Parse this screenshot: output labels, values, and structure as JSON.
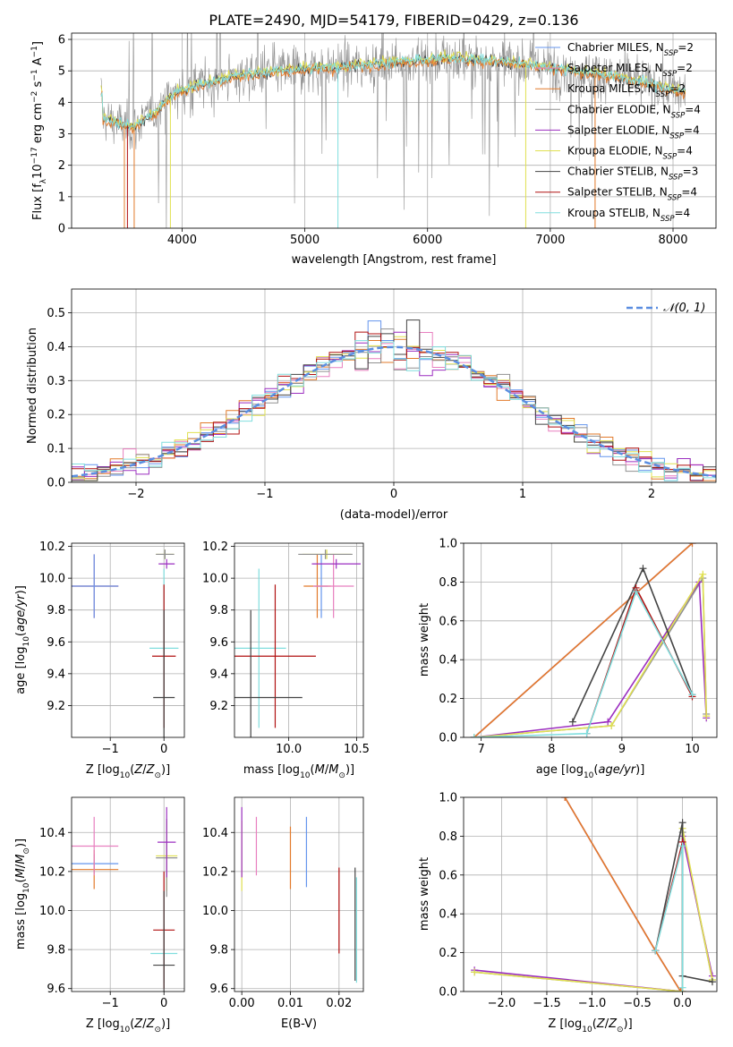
{
  "title": "PLATE=2490, MJD=54179, FIBERID=0429, z=0.136",
  "colors": {
    "Chabrier MILES": "#6495ed",
    "Salpeter MILES": "#e87fbf",
    "Kroupa MILES": "#e27a2a",
    "Chabrier ELODIE": "#909090",
    "Salpeter ELODIE": "#9c2fc0",
    "Kroupa ELODIE": "#e0e050",
    "Chabrier STELIB": "#444444",
    "Salpeter STELIB": "#b01010",
    "Kroupa STELIB": "#80dede",
    "normal": "#5b8ee0",
    "green": "#8fc43a"
  },
  "chart_data": [
    {
      "type": "line",
      "title": "PLATE=2490, MJD=54179, FIBERID=0429, z=0.136",
      "xlabel": "wavelength [Angstrom, rest frame]",
      "ylabel": "Flux [fλ10⁻¹⁷ erg cm⁻² s⁻¹ A⁻¹]",
      "xlim": [
        3100,
        8350
      ],
      "ylim": [
        0,
        6.2
      ],
      "xticks": [
        4000,
        5000,
        6000,
        7000,
        8000
      ],
      "yticks": [
        0,
        1,
        2,
        3,
        4,
        5,
        6
      ],
      "legend_position": "upper-right",
      "legend": [
        {
          "text": "Chabrier MILES, N",
          "sub": "SSP",
          "tail": "=2"
        },
        {
          "text": "Salpeter MILES, N",
          "sub": "SSP",
          "tail": "=2"
        },
        {
          "text": "Kroupa MILES, N",
          "sub": "SSP",
          "tail": "=2"
        },
        {
          "text": "Chabrier ELODIE, N",
          "sub": "SSP",
          "tail": "=4"
        },
        {
          "text": "Salpeter ELODIE, N",
          "sub": "SSP",
          "tail": "=4"
        },
        {
          "text": "Kroupa ELODIE, N",
          "sub": "SSP",
          "tail": "=4"
        },
        {
          "text": "Chabrier STELIB, N",
          "sub": "SSP",
          "tail": "=3"
        },
        {
          "text": "Salpeter STELIB, N",
          "sub": "SSP",
          "tail": "=4"
        },
        {
          "text": "Kroupa STELIB, N",
          "sub": "SSP",
          "tail": "=4"
        }
      ],
      "continuum": [
        [
          3350,
          3.5
        ],
        [
          3600,
          3.2
        ],
        [
          3750,
          3.6
        ],
        [
          3950,
          4.3
        ],
        [
          4100,
          4.5
        ],
        [
          4400,
          4.8
        ],
        [
          4800,
          5.0
        ],
        [
          5200,
          5.1
        ],
        [
          5800,
          5.3
        ],
        [
          6200,
          5.4
        ],
        [
          6600,
          5.3
        ],
        [
          7000,
          5.1
        ],
        [
          7400,
          4.9
        ],
        [
          7800,
          4.6
        ],
        [
          8100,
          4.3
        ]
      ],
      "data_range": [
        3340,
        8100
      ]
    },
    {
      "type": "bar",
      "subtype": "step-histogram",
      "xlabel": "(data-model)/error",
      "ylabel": "Normed distribution",
      "xlim": [
        -2.5,
        2.5
      ],
      "ylim": [
        0,
        0.57
      ],
      "xticks": [
        -2,
        -1,
        0,
        1,
        2
      ],
      "yticks": [
        0.0,
        0.1,
        0.2,
        0.3,
        0.4,
        0.5
      ],
      "bin_edges_start": -2.5,
      "bin_width": 0.1,
      "reference_curve": "N(0,1)",
      "legend": [
        {
          "text": "𝒩(0, 1)"
        }
      ],
      "legend_position": "upper-right"
    },
    {
      "type": "scatter",
      "subtype": "errorbar",
      "xlabel": "Z [log₁₀(Z/Z⊙)]",
      "ylabel": "age [log₁₀(age/yr)]",
      "xlim": [
        -1.72,
        0.38
      ],
      "ylim": [
        9.0,
        10.22
      ],
      "xticks": [
        -1,
        0
      ],
      "yticks": [
        9.2,
        9.4,
        9.6,
        9.8,
        10.0,
        10.2
      ],
      "points": [
        {
          "series": "Kroupa MILES",
          "x": -1.3,
          "y": 9.95,
          "xerr": 0.45,
          "yerr": 0.2
        },
        {
          "series": "Salpeter MILES",
          "x": -1.3,
          "y": 9.95,
          "xerr": 0.45,
          "yerr": 0.2
        },
        {
          "series": "Chabrier MILES",
          "x": -1.3,
          "y": 9.95,
          "xerr": 0.45,
          "yerr": 0.2
        },
        {
          "series": "Kroupa ELODIE",
          "x": 0.02,
          "y": 10.15,
          "xerr": 0.17,
          "yerr": 0.03
        },
        {
          "series": "Chabrier ELODIE",
          "x": 0.02,
          "y": 10.15,
          "xerr": 0.17,
          "yerr": 0.03
        },
        {
          "series": "Salpeter ELODIE",
          "x": 0.05,
          "y": 10.09,
          "xerr": 0.15,
          "yerr": 0.03
        },
        {
          "series": "Kroupa STELIB",
          "x": 0.0,
          "y": 9.56,
          "xerr": 0.27,
          "yerr": 0.5
        },
        {
          "series": "Salpeter STELIB",
          "x": 0.0,
          "y": 9.51,
          "xerr": 0.22,
          "yerr": 0.45
        },
        {
          "series": "Chabrier STELIB",
          "x": 0.0,
          "y": 9.25,
          "xerr": 0.2,
          "yerr": 0.55
        }
      ]
    },
    {
      "type": "scatter",
      "subtype": "errorbar",
      "xlabel": "mass [log₁₀(M/M⊙)]",
      "ylabel": "",
      "xlim": [
        9.6,
        10.55
      ],
      "ylim": [
        9.0,
        10.22
      ],
      "xticks": [
        10.0,
        10.5
      ],
      "yticks": [
        9.2,
        9.4,
        9.6,
        9.8,
        10.0,
        10.2
      ],
      "points": [
        {
          "series": "Chabrier MILES",
          "x": 10.24,
          "y": 9.95,
          "xerr": 0.05,
          "yerr": 0.2
        },
        {
          "series": "Kroupa MILES",
          "x": 10.21,
          "y": 9.95,
          "xerr": 0.1,
          "yerr": 0.2
        },
        {
          "series": "Salpeter MILES",
          "x": 10.33,
          "y": 9.95,
          "xerr": 0.15,
          "yerr": 0.2
        },
        {
          "series": "Kroupa ELODIE",
          "x": 10.28,
          "y": 10.15,
          "xerr": 0.18,
          "yerr": 0.03
        },
        {
          "series": "Chabrier ELODIE",
          "x": 10.27,
          "y": 10.15,
          "xerr": 0.2,
          "yerr": 0.03
        },
        {
          "series": "Salpeter ELODIE",
          "x": 10.35,
          "y": 10.09,
          "xerr": 0.18,
          "yerr": 0.03
        },
        {
          "series": "Kroupa STELIB",
          "x": 9.78,
          "y": 9.56,
          "xerr": 0.2,
          "yerr": 0.5
        },
        {
          "series": "Salpeter STELIB",
          "x": 9.9,
          "y": 9.51,
          "xerr": 0.3,
          "yerr": 0.45
        },
        {
          "series": "Chabrier STELIB",
          "x": 9.72,
          "y": 9.25,
          "xerr": 0.38,
          "yerr": 0.55
        }
      ]
    },
    {
      "type": "line",
      "xlabel": "age [log₁₀(age/yr)]",
      "ylabel": "mass weight",
      "xlim": [
        6.75,
        10.35
      ],
      "ylim": [
        0,
        1
      ],
      "xticks": [
        7,
        8,
        9,
        10
      ],
      "yticks": [
        0.0,
        0.2,
        0.4,
        0.6,
        0.8,
        1.0
      ],
      "series": [
        {
          "name": "Chabrier MILES",
          "x": [
            6.9,
            10.0
          ],
          "y": [
            0.0,
            1.0
          ]
        },
        {
          "name": "Salpeter MILES",
          "x": [
            6.9,
            10.0
          ],
          "y": [
            0.0,
            1.0
          ]
        },
        {
          "name": "Kroupa MILES",
          "x": [
            6.9,
            10.0
          ],
          "y": [
            0.0,
            1.0
          ]
        },
        {
          "name": "Chabrier ELODIE",
          "x": [
            6.9,
            8.85,
            10.15,
            10.2
          ],
          "y": [
            0.0,
            0.06,
            0.82,
            0.12
          ]
        },
        {
          "name": "Salpeter ELODIE",
          "x": [
            6.9,
            8.8,
            10.1,
            10.2
          ],
          "y": [
            0.0,
            0.08,
            0.8,
            0.1
          ]
        },
        {
          "name": "Kroupa ELODIE",
          "x": [
            6.9,
            8.85,
            10.15,
            10.2
          ],
          "y": [
            0.0,
            0.06,
            0.84,
            0.11
          ]
        },
        {
          "name": "Chabrier STELIB",
          "x": [
            8.3,
            9.3,
            10.0
          ],
          "y": [
            0.08,
            0.87,
            0.22
          ]
        },
        {
          "name": "Salpeter STELIB",
          "x": [
            8.5,
            9.2,
            10.0
          ],
          "y": [
            0.02,
            0.77,
            0.21
          ]
        },
        {
          "name": "Kroupa STELIB",
          "x": [
            6.9,
            8.5,
            9.2,
            10.0
          ],
          "y": [
            0.0,
            0.02,
            0.75,
            0.22
          ]
        }
      ]
    },
    {
      "type": "scatter",
      "subtype": "errorbar",
      "xlabel": "Z [log₁₀(Z/Z⊙)]",
      "ylabel": "mass [log₁₀(M/M⊙)]",
      "xlim": [
        -1.72,
        0.38
      ],
      "ylim": [
        9.585,
        10.58
      ],
      "xticks": [
        -1,
        0
      ],
      "yticks": [
        9.6,
        9.8,
        10.0,
        10.2,
        10.4
      ],
      "points": [
        {
          "series": "Chabrier MILES",
          "x": -1.3,
          "y": 10.24,
          "xerr": 0.45,
          "yerr": 0.05
        },
        {
          "series": "Kroupa MILES",
          "x": -1.3,
          "y": 10.21,
          "xerr": 0.45,
          "yerr": 0.1
        },
        {
          "series": "Salpeter MILES",
          "x": -1.3,
          "y": 10.33,
          "xerr": 0.45,
          "yerr": 0.15
        },
        {
          "series": "Kroupa ELODIE",
          "x": 0.05,
          "y": 10.28,
          "xerr": 0.2,
          "yerr": 0.18
        },
        {
          "series": "Chabrier ELODIE",
          "x": 0.05,
          "y": 10.27,
          "xerr": 0.2,
          "yerr": 0.2
        },
        {
          "series": "Salpeter ELODIE",
          "x": 0.05,
          "y": 10.35,
          "xerr": 0.17,
          "yerr": 0.18
        },
        {
          "series": "Kroupa STELIB",
          "x": 0.0,
          "y": 9.78,
          "xerr": 0.25,
          "yerr": 0.15
        },
        {
          "series": "Salpeter STELIB",
          "x": 0.0,
          "y": 9.9,
          "xerr": 0.2,
          "yerr": 0.3
        },
        {
          "series": "Chabrier STELIB",
          "x": 0.0,
          "y": 9.72,
          "xerr": 0.2,
          "yerr": 0.38
        }
      ]
    },
    {
      "type": "scatter",
      "subtype": "errorbar",
      "xlabel": "E(B-V)",
      "ylabel": "",
      "xlim": [
        -0.0015,
        0.025
      ],
      "ylim": [
        9.585,
        10.58
      ],
      "xticks": [
        0.0,
        0.01,
        0.02
      ],
      "yticks": [
        9.6,
        9.8,
        10.0,
        10.2,
        10.4
      ],
      "points": [
        {
          "series": "Kroupa ELODIE",
          "x": 0.0,
          "y": 10.28,
          "xerr": 0.0,
          "yerr": 0.18
        },
        {
          "series": "Salpeter ELODIE",
          "x": 0.0,
          "y": 10.35,
          "xerr": 0.0,
          "yerr": 0.18
        },
        {
          "series": "Salpeter MILES",
          "x": 0.003,
          "y": 10.33,
          "xerr": 0.0,
          "yerr": 0.15
        },
        {
          "series": "Kroupa MILES",
          "x": 0.01,
          "y": 10.27,
          "xerr": 0.0,
          "yerr": 0.16
        },
        {
          "series": "Chabrier MILES",
          "x": 0.0133,
          "y": 10.3,
          "xerr": 0.0,
          "yerr": 0.18
        },
        {
          "series": "Salpeter STELIB",
          "x": 0.02,
          "y": 10.0,
          "xerr": 0.0,
          "yerr": 0.22
        },
        {
          "series": "Chabrier STELIB",
          "x": 0.0233,
          "y": 9.93,
          "xerr": 0.0,
          "yerr": 0.29
        },
        {
          "series": "Kroupa STELIB",
          "x": 0.0236,
          "y": 9.9,
          "xerr": 0.0,
          "yerr": 0.27
        }
      ]
    },
    {
      "type": "line",
      "xlabel": "Z [log₁₀(Z/Z⊙)]",
      "ylabel": "mass weight",
      "xlim": [
        -2.42,
        0.38
      ],
      "ylim": [
        0,
        1
      ],
      "xticks": [
        -2.0,
        -1.5,
        -1.0,
        -0.5,
        0.0
      ],
      "yticks": [
        0.0,
        0.2,
        0.4,
        0.6,
        0.8,
        1.0
      ],
      "series": [
        {
          "name": "Chabrier MILES",
          "x": [
            -1.3,
            -0.3,
            -0.02
          ],
          "y": [
            1.0,
            0.21,
            0.0
          ]
        },
        {
          "name": "Salpeter MILES",
          "x": [
            -1.3,
            -0.3,
            -0.02
          ],
          "y": [
            1.0,
            0.21,
            0.0
          ]
        },
        {
          "name": "Kroupa MILES",
          "x": [
            -1.3,
            -0.3,
            -0.02
          ],
          "y": [
            1.0,
            0.21,
            0.0
          ]
        },
        {
          "name": "Chabrier ELODIE",
          "x": [
            -2.3,
            0.0,
            0.0,
            0.33
          ],
          "y": [
            0.1,
            0.0,
            0.82,
            0.06
          ]
        },
        {
          "name": "Salpeter ELODIE",
          "x": [
            -2.3,
            0.0,
            0.0,
            0.33
          ],
          "y": [
            0.11,
            0.0,
            0.8,
            0.08
          ]
        },
        {
          "name": "Kroupa ELODIE",
          "x": [
            -2.3,
            0.0,
            0.0,
            0.33
          ],
          "y": [
            0.1,
            0.0,
            0.84,
            0.06
          ]
        },
        {
          "name": "Chabrier STELIB",
          "x": [
            -0.3,
            0.0,
            0.0,
            0.33
          ],
          "y": [
            0.21,
            0.87,
            0.08,
            0.05
          ]
        },
        {
          "name": "Salpeter STELIB",
          "x": [
            -0.3,
            0.0
          ],
          "y": [
            0.21,
            0.77
          ]
        },
        {
          "name": "Kroupa STELIB",
          "x": [
            -0.3,
            0.0,
            0.0
          ],
          "y": [
            0.21,
            0.75,
            0.02
          ]
        }
      ]
    }
  ]
}
